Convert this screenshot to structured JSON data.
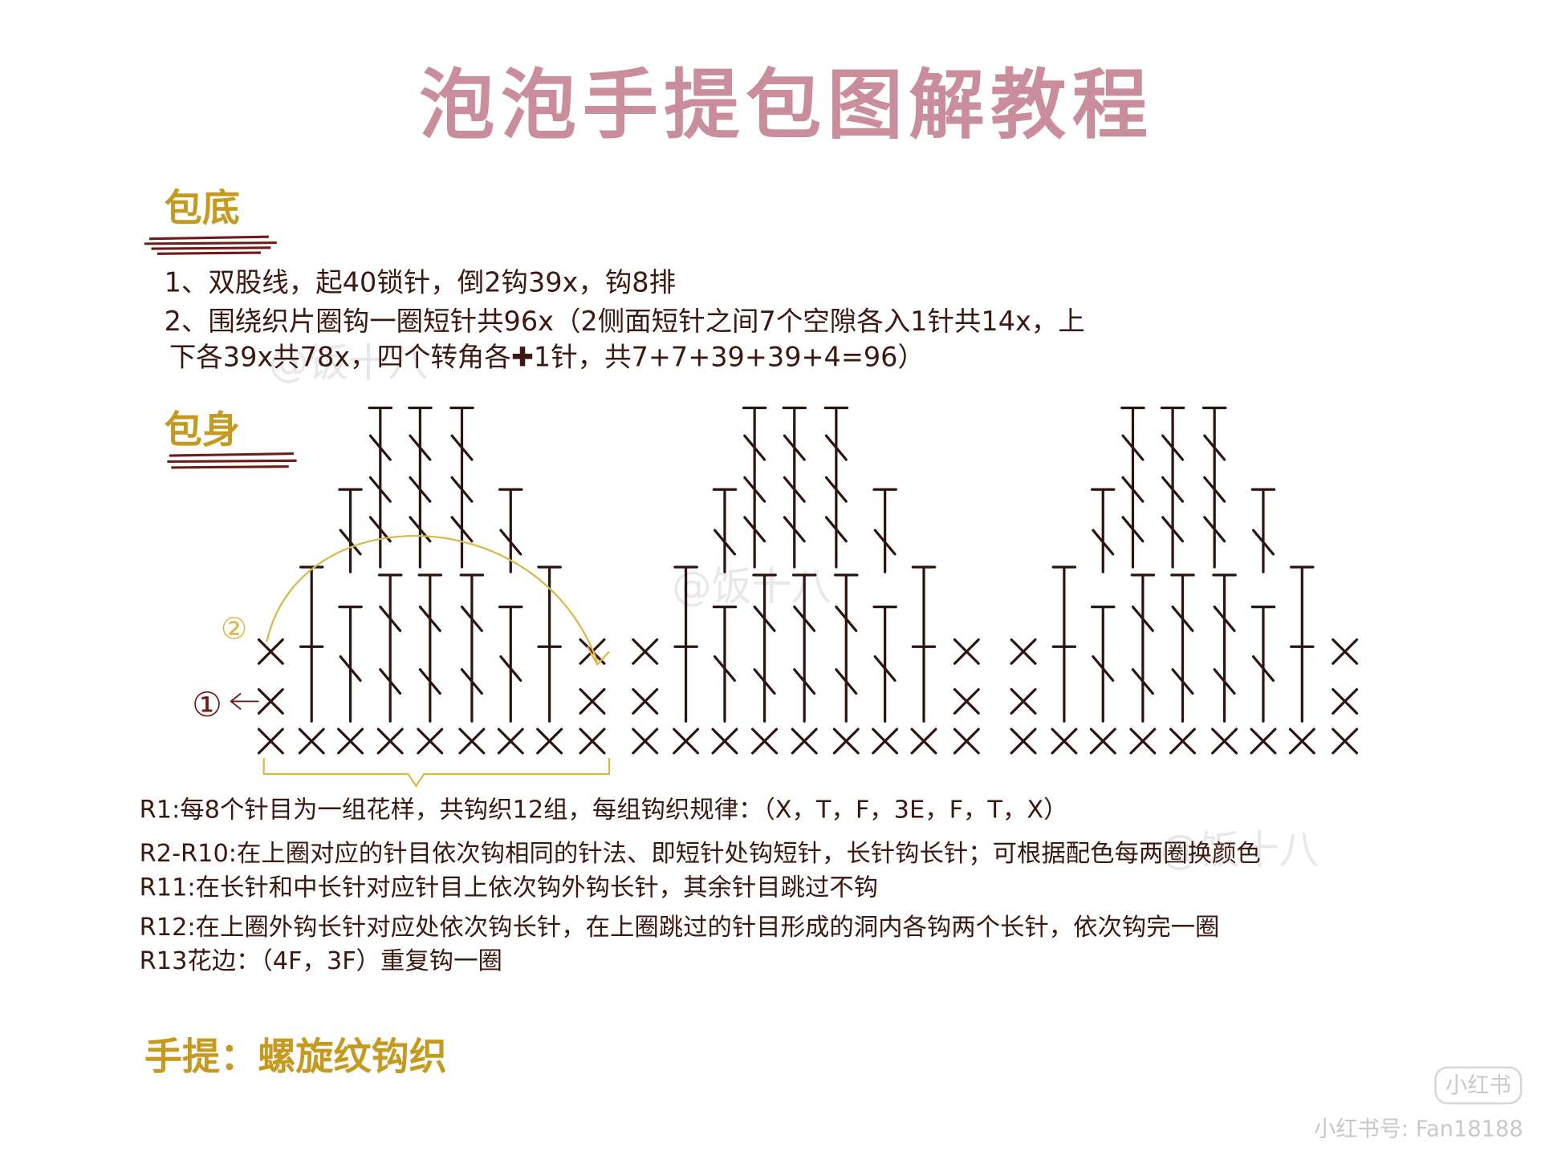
{
  "header": {
    "title": "泡泡手提包图解教程"
  },
  "bottom": {
    "heading": "包底",
    "lines": [
      "1、双股线，起40锁针，倒2钩39x，钩8排",
      "2、围绕织片圈钩一圈短针共96x（2侧面短针之间7个空隙各入1针共14x，上",
      "下各39x共78x，四个转角各✚1针，共7+7+39+39+4=96）"
    ]
  },
  "body": {
    "heading": "包身",
    "labels": [
      "②",
      "①"
    ],
    "rows": [
      "R1:每8个针目为一组花样，共钩织12组，每组钩织规律：（X，T，F，3E，F，T，X）",
      "R2-R10:在上圈对应的针目依次钩相同的针法、即短针处钩短针，长针钩长针；可根据配色每两圈换颜色",
      "R11:在长针和中长针对应针目上依次钩外钩长针，其余针目跳过不钩",
      "R12:在上圈外钩长针对应处依次钩长针，在上圈跳过的针目形成的洞内各钩两个长针，依次钩完一圈",
      "R13花边：（4F，3F）重复钩一圈"
    ]
  },
  "handle": {
    "heading": "手提：螺旋纹钩织"
  },
  "watermarks": {
    "author": "@饭十八",
    "account": "小红书号: Fan18188",
    "logo": "小红书"
  }
}
